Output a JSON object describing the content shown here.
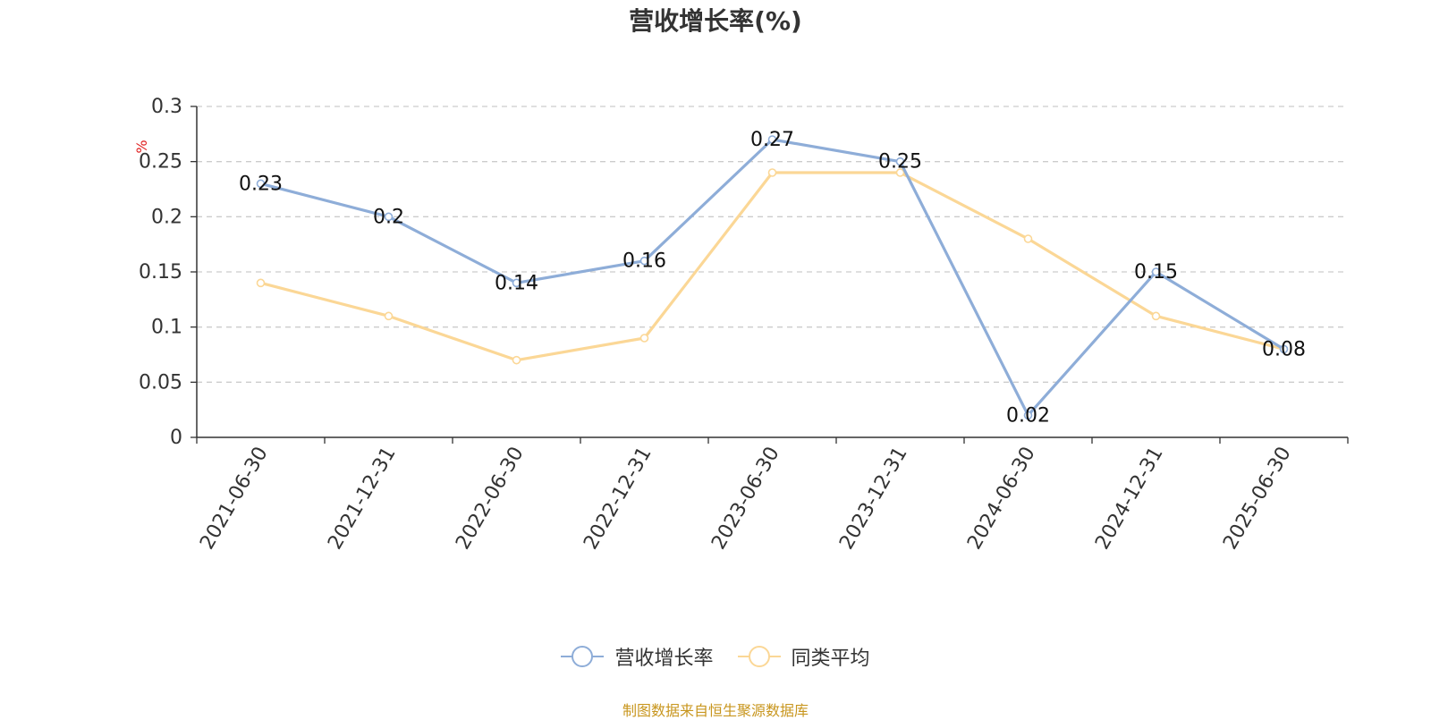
{
  "chart_data": {
    "type": "line",
    "title": "营收增长率(%)",
    "ylabel": "%",
    "ylim": [
      0,
      0.3
    ],
    "y_ticks": [
      0,
      0.05,
      0.1,
      0.15,
      0.2,
      0.25,
      0.3
    ],
    "y_tick_labels": [
      "0",
      "0.05",
      "0.1",
      "0.15",
      "0.2",
      "0.25",
      "0.3"
    ],
    "categories": [
      "2021-06-30",
      "2021-12-31",
      "2022-06-30",
      "2022-12-31",
      "2023-06-30",
      "2023-12-31",
      "2024-06-30",
      "2024-12-31",
      "2025-06-30"
    ],
    "series": [
      {
        "name": "营收增长率",
        "color": "#8eadd8",
        "values": [
          0.23,
          0.2,
          0.14,
          0.16,
          0.27,
          0.25,
          0.02,
          0.15,
          0.08
        ],
        "data_labels": [
          "0.23",
          "0.2",
          "0.14",
          "0.16",
          "0.27",
          "0.25",
          "0.02",
          "0.15",
          "0.08"
        ]
      },
      {
        "name": "同类平均",
        "color": "#fbd796",
        "values": [
          0.14,
          0.11,
          0.07,
          0.09,
          0.24,
          0.24,
          0.18,
          0.11,
          0.08
        ]
      }
    ],
    "grid": true,
    "legend_position": "bottom"
  },
  "source_note": "制图数据来自恒生聚源数据库",
  "colors": {
    "source_note": "#c8961e",
    "axis_unit": "#e02020"
  }
}
